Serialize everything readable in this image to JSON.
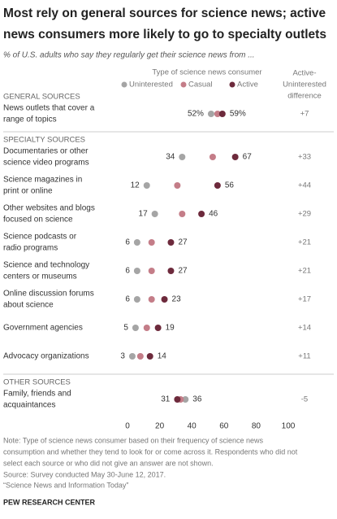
{
  "chart_data": {
    "type": "dot",
    "title": [
      "Most rely on general sources for science news; active",
      "news consumers more likely to go to specialty outlets"
    ],
    "subtitle": "% of U.S. adults who say they regularly get their science news from ...",
    "legend_title": "Type of science news consumer",
    "difference_header": [
      "Active-",
      "Uninterested",
      "difference"
    ],
    "groups": [
      {
        "name": "GENERAL SOURCES",
        "categories": [
          [
            "News outlets that cover a",
            "range of topics"
          ]
        ],
        "differences": [
          "+7"
        ]
      },
      {
        "name": "SPECIALTY SOURCES",
        "categories": [
          [
            "Documentaries or other",
            "science video programs"
          ],
          [
            "Science magazines in",
            "print or online"
          ],
          [
            "Other websites and blogs",
            "focused on science"
          ],
          [
            "Science podcasts or",
            "radio programs"
          ],
          [
            "Science and technology",
            "centers or museums"
          ],
          [
            "Online discussion forums",
            "about science"
          ],
          [
            "Government agencies"
          ],
          [
            "Advocacy organizations"
          ]
        ],
        "differences": [
          "+33",
          "+44",
          "+29",
          "+21",
          "+21",
          "+17",
          "+14",
          "+11"
        ]
      },
      {
        "name": "OTHER SOURCES",
        "categories": [
          [
            "Family, friends and",
            "acquaintances"
          ]
        ],
        "differences": [
          "-5"
        ]
      }
    ],
    "series": [
      {
        "name": "Uninterested",
        "color": "#a5a5a5",
        "values": [
          52,
          34,
          12,
          17,
          6,
          6,
          6,
          5,
          3,
          36
        ],
        "value_labels": [
          "52%",
          "34",
          "12",
          "17",
          "6",
          "6",
          "6",
          "5",
          "3",
          "36"
        ]
      },
      {
        "name": "Casual",
        "color": "#c47d88",
        "values": [
          56,
          53,
          31,
          34,
          15,
          15,
          15,
          12,
          8,
          33
        ]
      },
      {
        "name": "Active",
        "color": "#6d2a3c",
        "values": [
          59,
          67,
          56,
          46,
          27,
          27,
          23,
          19,
          14,
          31
        ],
        "value_labels": [
          "59%",
          "67",
          "56",
          "46",
          "27",
          "27",
          "23",
          "19",
          "14",
          "31"
        ]
      }
    ],
    "xlim": [
      0,
      100
    ],
    "xticks": [
      0,
      20,
      40,
      60,
      80,
      100
    ],
    "notes": [
      "Note: Type of science news consumer based on their frequency of science news",
      "consumption and whether they tend to look for or come across it. Respondents who did not",
      "select each source or who did not give an answer are not shown.",
      "Source: Survey conducted May 30-June 12, 2017.",
      "“Science News and Information Today”"
    ],
    "source": "PEW RESEARCH CENTER"
  }
}
